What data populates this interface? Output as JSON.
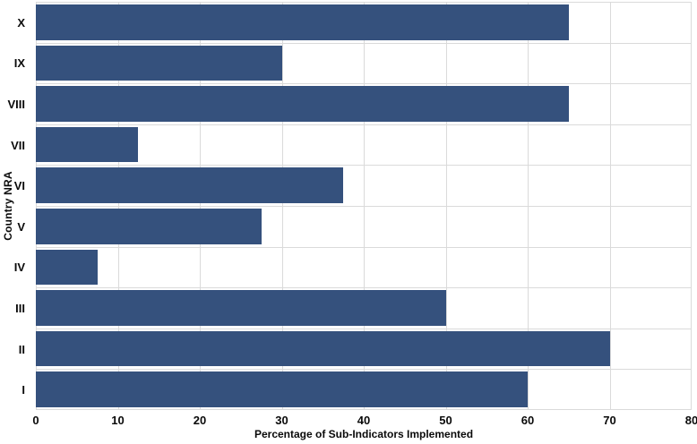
{
  "chart_data": {
    "type": "bar",
    "orientation": "horizontal",
    "title": "",
    "xlabel": "Percentage of Sub-Indicators Implemented",
    "ylabel": "Country NRA",
    "categories": [
      "X",
      "IX",
      "VIII",
      "VII",
      "VI",
      "V",
      "IV",
      "III",
      "II",
      "I"
    ],
    "values": [
      65,
      30,
      65,
      12.5,
      37.5,
      27.5,
      7.5,
      50,
      70,
      60
    ],
    "xlim": [
      0,
      80
    ],
    "xticks": [
      0,
      10,
      20,
      30,
      40,
      50,
      60,
      70,
      80
    ],
    "grid": true,
    "legend": "none",
    "colors": {
      "bar": "#35517D",
      "gridline": "#DADADA",
      "text": "#0A0A0A",
      "background": "#FFFFFF"
    }
  }
}
